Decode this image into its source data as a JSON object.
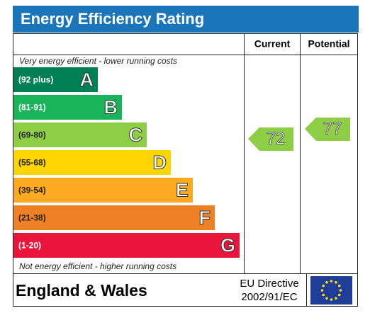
{
  "header": {
    "title": "Energy Efficiency Rating"
  },
  "columns": [
    "Current",
    "Potential"
  ],
  "top_note": "Very energy efficient - lower running costs",
  "bottom_note": "Not energy efficient - higher running costs",
  "bands": [
    {
      "range": "(92 plus)",
      "letter": "A",
      "color": "#008054"
    },
    {
      "range": "(81-91)",
      "letter": "B",
      "color": "#19b459"
    },
    {
      "range": "(69-80)",
      "letter": "C",
      "color": "#8dce46"
    },
    {
      "range": "(55-68)",
      "letter": "D",
      "color": "#ffd500"
    },
    {
      "range": "(39-54)",
      "letter": "E",
      "color": "#fcaa1f"
    },
    {
      "range": "(21-38)",
      "letter": "F",
      "color": "#ef8023"
    },
    {
      "range": "(1-20)",
      "letter": "G",
      "color": "#e9153b"
    }
  ],
  "current": 72,
  "potential": 77,
  "footer": {
    "region": "England & Wales",
    "directive": [
      "EU Directive",
      "2002/91/EC"
    ]
  }
}
